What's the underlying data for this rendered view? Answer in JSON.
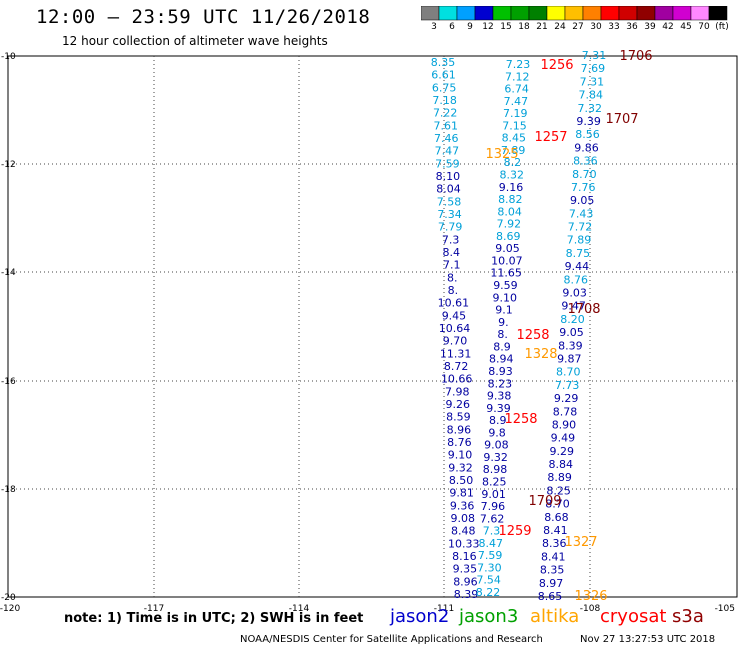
{
  "header": {
    "title": "12:00 – 23:59 UTC 11/26/2018",
    "subtitle": "12 hour collection of altimeter wave heights"
  },
  "colorbar": {
    "colors": [
      "#7f7f7f",
      "#00e0e0",
      "#00a0ff",
      "#0000d0",
      "#00c000",
      "#00a000",
      "#008000",
      "#ffff00",
      "#ffbf00",
      "#ff8000",
      "#ff0000",
      "#d00000",
      "#900000",
      "#a000a0",
      "#d000d0",
      "#ff88ff",
      "#000000"
    ],
    "labels": [
      "3",
      "6",
      "9",
      "12",
      "15",
      "18",
      "21",
      "24",
      "27",
      "30",
      "33",
      "36",
      "39",
      "42",
      "45",
      "70",
      "(ft)"
    ]
  },
  "axes": {
    "x_ticks": [
      "-120",
      "-117",
      "-114",
      "-111",
      "-108",
      "-105"
    ],
    "y_ticks": [
      "-10",
      "-12",
      "-14",
      "-16",
      "-18",
      "-20"
    ]
  },
  "passes": {
    "color": "#00a0d8",
    "color_dark": "#0000a0",
    "labels": [
      {
        "text": "1706",
        "color": "#800000"
      },
      {
        "text": "1256",
        "color": "#ff0000"
      },
      {
        "text": "1707",
        "color": "#800000"
      },
      {
        "text": "1257",
        "color": "#ff0000"
      },
      {
        "text": "1325",
        "color": "#ff9900"
      },
      {
        "text": "1708",
        "color": "#800000"
      },
      {
        "text": "1258",
        "color": "#ff0000"
      },
      {
        "text": "1328",
        "color": "#ff9900"
      },
      {
        "text": "1258",
        "color": "#ff0000"
      },
      {
        "text": "1709",
        "color": "#800000"
      },
      {
        "text": "1259",
        "color": "#ff0000"
      },
      {
        "text": "1327",
        "color": "#ff9900"
      },
      {
        "text": "1326",
        "color": "#ff9900"
      }
    ],
    "track_a": [
      "8.35",
      "6.61",
      "6.75",
      "7.18",
      "7.22",
      "7.61",
      "7.46",
      "7.47",
      "7.59",
      "8.10",
      "8.04",
      "7.58",
      "7.34",
      "7.79",
      "7.3",
      "8.4",
      "7.1",
      "8.",
      "8.",
      "10.61",
      "9.45",
      "10.64",
      "9.70",
      "11.31",
      "8.72",
      "10.66",
      "7.98",
      "9.26",
      "8.59",
      "8.96",
      "8.76",
      "9.10",
      "9.32",
      "8.50",
      "9.81",
      "9.36",
      "9.08",
      "8.48",
      "10.33",
      "8.16",
      "9.35",
      "8.96",
      "8.39"
    ],
    "track_b": [
      "7.23",
      "7.12",
      "6.74",
      "7.47",
      "7.19",
      "7.15",
      "8.45",
      "7.89",
      "8.2",
      "8.32",
      "9.16",
      "8.82",
      "8.04",
      "7.92",
      "8.69",
      "9.05",
      "10.07",
      "11.65",
      "9.59",
      "9.10",
      "9.1",
      "9.",
      "8.",
      "8.9",
      "8.94",
      "8.93",
      "8.23",
      "9.38",
      "9.39",
      "8.9",
      "9.8",
      "9.08",
      "9.32",
      "8.98",
      "8.25",
      "9.01",
      "7.96",
      "7.62",
      "7.3",
      "8.47",
      "7.59",
      "7.30",
      "7.54",
      "8.22"
    ],
    "track_c": [
      "7.31",
      "7.69",
      "7.31",
      "7.84",
      "7.32",
      "9.39",
      "8.56",
      "9.86",
      "8.36",
      "8.70",
      "7.76",
      "9.05",
      "7.43",
      "7.72",
      "7.89",
      "8.75",
      "9.44",
      "8.76",
      "9.03",
      "9.47",
      "8.20",
      "9.05",
      "8.39",
      "9.87",
      "8.70",
      "7.73",
      "9.29",
      "8.78",
      "8.90",
      "9.49",
      "9.29",
      "8.84",
      "8.89",
      "8.25",
      "8.70",
      "8.68",
      "8.41",
      "8.36",
      "8.41",
      "8.35",
      "8.97",
      "8.65"
    ],
    "dark_a": [
      9,
      10,
      14,
      15,
      16,
      17,
      18,
      19,
      20,
      21,
      22,
      23,
      24,
      25,
      26,
      27,
      28,
      29,
      30,
      31,
      32,
      33,
      34,
      35,
      36,
      37,
      38,
      39,
      40,
      41,
      42
    ],
    "dark_b": [
      10,
      15,
      16,
      17,
      18,
      19,
      20,
      21,
      22,
      23,
      24,
      25,
      26,
      27,
      28,
      29,
      30,
      31,
      32,
      33,
      34,
      35,
      36,
      37
    ],
    "dark_c": [
      5,
      7,
      11,
      16,
      18,
      19,
      21,
      22,
      23,
      26,
      27,
      28,
      29,
      30,
      31,
      32,
      33,
      34,
      35,
      36,
      37,
      38,
      39,
      40,
      41
    ]
  },
  "footer": {
    "note": "note:  1) Time is in UTC;  2) SWH is in feet",
    "legend": [
      {
        "text": "jason2",
        "color": "#0000cc"
      },
      {
        "text": "jason3",
        "color": "#00a000"
      },
      {
        "text": "altika",
        "color": "#ffa500"
      },
      {
        "text": "cryosat",
        "color": "#ff0000"
      },
      {
        "text": "s3a",
        "color": "#900000"
      }
    ],
    "credit": "NOAA/NESDIS Center for Satellite Applications and Research",
    "timestamp": "Nov 27 13:27:53 UTC 2018"
  }
}
